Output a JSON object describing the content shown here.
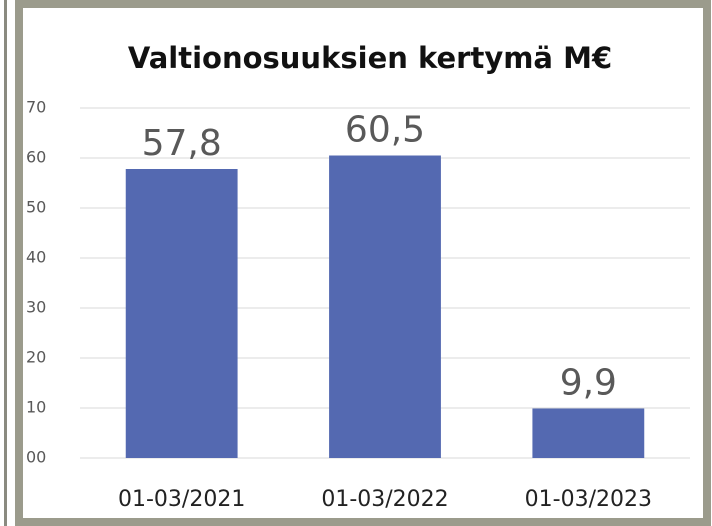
{
  "chart_data": {
    "type": "bar",
    "title": "Valtionosuuksien kertymä M€",
    "categories": [
      "01-03/2021",
      "01-03/2022",
      "01-03/2023"
    ],
    "values": [
      57.8,
      60.5,
      9.9
    ],
    "value_labels": [
      "57,8",
      "60,5",
      "9,9"
    ],
    "color": "#5469b1",
    "ylim": [
      0,
      70
    ],
    "yticks": [
      {
        "value": 0,
        "label": "00"
      },
      10,
      20,
      30,
      40,
      50,
      60,
      70
    ],
    "grid": true
  }
}
